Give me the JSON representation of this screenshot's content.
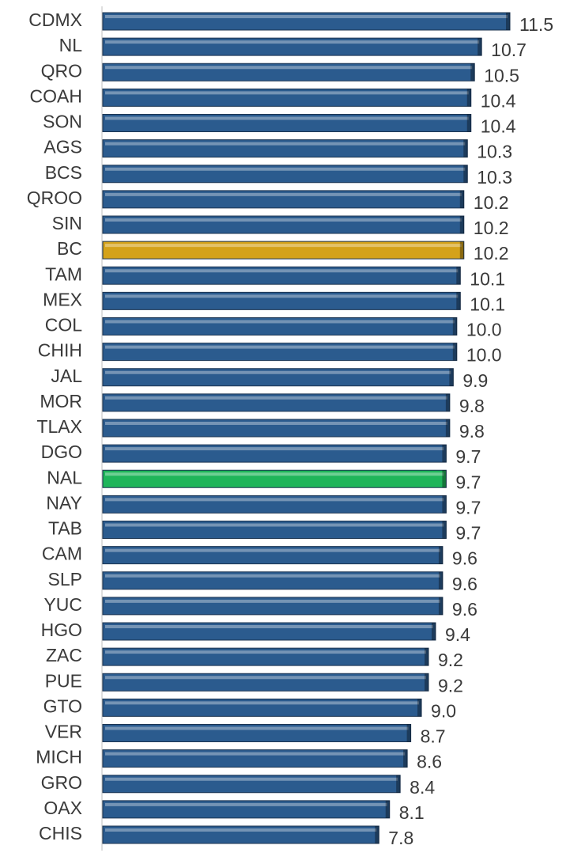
{
  "chart_data": {
    "type": "bar",
    "orientation": "horizontal",
    "categories": [
      "CDMX",
      "NL",
      "QRO",
      "COAH",
      "SON",
      "AGS",
      "BCS",
      "QROO",
      "SIN",
      "BC",
      "TAM",
      "MEX",
      "COL",
      "CHIH",
      "JAL",
      "MOR",
      "TLAX",
      "DGO",
      "NAL",
      "NAY",
      "TAB",
      "CAM",
      "SLP",
      "YUC",
      "HGO",
      "ZAC",
      "PUE",
      "GTO",
      "VER",
      "MICH",
      "GRO",
      "OAX",
      "CHIS"
    ],
    "values": [
      11.5,
      10.7,
      10.5,
      10.4,
      10.4,
      10.3,
      10.3,
      10.2,
      10.2,
      10.2,
      10.1,
      10.1,
      10.0,
      10.0,
      9.9,
      9.8,
      9.8,
      9.7,
      9.7,
      9.7,
      9.7,
      9.6,
      9.6,
      9.6,
      9.4,
      9.2,
      9.2,
      9.0,
      8.7,
      8.6,
      8.4,
      8.1,
      7.8
    ],
    "value_labels": [
      "11.5",
      "10.7",
      "10.5",
      "10.4",
      "10.4",
      "10.3",
      "10.3",
      "10.2",
      "10.2",
      "10.2",
      "10.1",
      "10.1",
      "10.0",
      "10.0",
      "9.9",
      "9.8",
      "9.8",
      "9.7",
      "9.7",
      "9.7",
      "9.7",
      "9.6",
      "9.6",
      "9.6",
      "9.4",
      "9.2",
      "9.2",
      "9.0",
      "8.7",
      "8.6",
      "8.4",
      "8.1",
      "7.8"
    ],
    "colors": [
      "#2b5b8e",
      "#2b5b8e",
      "#2b5b8e",
      "#2b5b8e",
      "#2b5b8e",
      "#2b5b8e",
      "#2b5b8e",
      "#2b5b8e",
      "#2b5b8e",
      "#d4a21a",
      "#2b5b8e",
      "#2b5b8e",
      "#2b5b8e",
      "#2b5b8e",
      "#2b5b8e",
      "#2b5b8e",
      "#2b5b8e",
      "#2b5b8e",
      "#1fb55a",
      "#2b5b8e",
      "#2b5b8e",
      "#2b5b8e",
      "#2b5b8e",
      "#2b5b8e",
      "#2b5b8e",
      "#2b5b8e",
      "#2b5b8e",
      "#2b5b8e",
      "#2b5b8e",
      "#2b5b8e",
      "#2b5b8e",
      "#2b5b8e",
      "#2b5b8e"
    ]
  }
}
